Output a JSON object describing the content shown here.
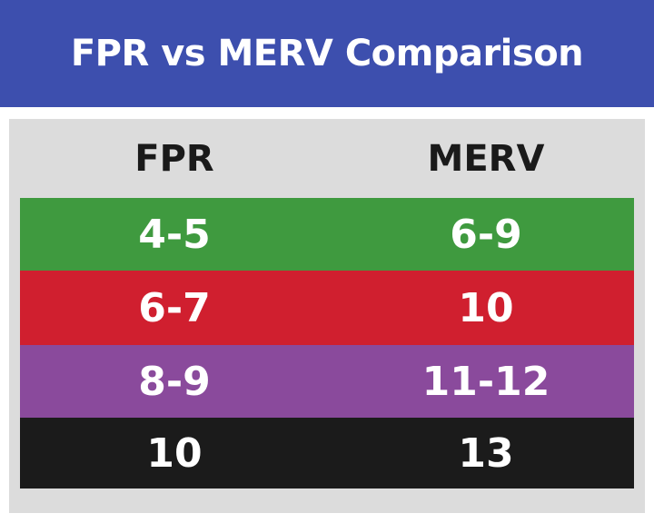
{
  "title": "FPR vs MERV Comparison",
  "columns": [
    "FPR",
    "MERV"
  ],
  "rows": [
    {
      "fpr": "4-5",
      "merv": "6-9",
      "color": "#3f9a3f"
    },
    {
      "fpr": "6-7",
      "merv": "10",
      "color": "#d01f2f"
    },
    {
      "fpr": "8-9",
      "merv": "11-12",
      "color": "#8a4a9c"
    },
    {
      "fpr": "10",
      "merv": "13",
      "color": "#1b1b1b"
    }
  ],
  "colors": {
    "banner": "#3d4fae",
    "panel": "#dcdcdc"
  }
}
